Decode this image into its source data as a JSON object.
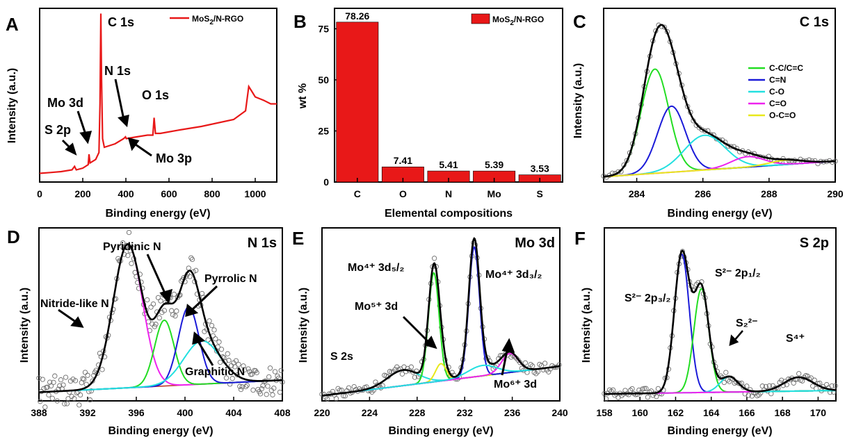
{
  "palette": {
    "red": "#e81818",
    "black": "#000000",
    "green": "#22dd22",
    "blue": "#1a1ad8",
    "cyan": "#22e0e0",
    "magenta": "#ee22ee",
    "yellow": "#e8e81a",
    "raw": "#6b6b6b"
  },
  "chart_data": [
    {
      "panel": "A",
      "type": "line",
      "xlabel": "Binding energy (eV)",
      "ylabel": "Intensity (a.u.)",
      "xlim": [
        0,
        1100
      ],
      "ylim": [
        0,
        100
      ],
      "xticks": [
        "0",
        "200",
        "400",
        "600",
        "800",
        "1000"
      ],
      "legend": "MoS2/N-RGO",
      "legend_position": "top-right",
      "series": [
        {
          "name": "MoS2/N-RGO",
          "color": "#e81818",
          "x": [
            0,
            50,
            100,
            150,
            162,
            170,
            200,
            225,
            229,
            234,
            260,
            275,
            280,
            284,
            287,
            292,
            300,
            350,
            390,
            398,
            402,
            450,
            500,
            525,
            531,
            537,
            560,
            650,
            750,
            900,
            955,
            970,
            985,
            1000,
            1040,
            1072,
            1100
          ],
          "y": [
            5,
            5.5,
            6,
            7,
            9,
            7,
            8,
            10,
            16,
            11,
            13,
            17,
            45,
            97,
            60,
            25,
            20,
            22,
            25,
            26,
            25,
            26,
            27,
            27,
            37,
            28,
            28,
            30,
            32,
            36,
            41,
            55,
            52,
            49,
            47,
            45,
            45
          ]
        }
      ],
      "annotations": [
        {
          "text": "C 1s",
          "x": 284,
          "y": 97
        },
        {
          "text": "N 1s",
          "x": 398,
          "y": 26
        },
        {
          "text": "O 1s",
          "x": 531,
          "y": 37
        },
        {
          "text": "Mo 3d",
          "x": 229,
          "y": 16
        },
        {
          "text": "S 2p",
          "x": 162,
          "y": 9
        },
        {
          "text": "Mo 3p",
          "x": 395,
          "y": 25
        }
      ]
    },
    {
      "panel": "B",
      "type": "bar",
      "xlabel": "Elemental compositions",
      "ylabel": "wt %",
      "ylim": [
        0,
        85
      ],
      "yticks": [
        0,
        25,
        50,
        75
      ],
      "legend": "MoS2/N-RGO",
      "legend_position": "top-right",
      "categories": [
        "C",
        "O",
        "N",
        "Mo",
        "S"
      ],
      "values": [
        78.26,
        7.41,
        5.41,
        5.39,
        3.53
      ],
      "value_labels": [
        "78.26",
        "7.41",
        "5.41",
        "5.39",
        "3.53"
      ],
      "color": "#e81818"
    },
    {
      "panel": "C",
      "type": "line",
      "title": "C 1s",
      "xlabel": "Binding energy (eV)",
      "ylabel": "Intensity (a.u.)",
      "xlim": [
        283,
        290
      ],
      "ylim": [
        0,
        100
      ],
      "xticks": [
        "284",
        "286",
        "288",
        "290"
      ],
      "legend_position": "top-right",
      "baseline": {
        "type": "linear",
        "x0": 283,
        "y0": 3,
        "x1": 290,
        "y1": 12
      },
      "peaks": [
        {
          "name": "C-C/C=C",
          "color": "#22dd22",
          "center": 284.55,
          "height": 60,
          "width": 0.42
        },
        {
          "name": "C=N",
          "color": "#1a1ad8",
          "center": 285.05,
          "height": 38,
          "width": 0.42
        },
        {
          "name": "C-O",
          "color": "#22e0e0",
          "center": 286.05,
          "height": 20,
          "width": 0.62
        },
        {
          "name": "C=O",
          "color": "#ee22ee",
          "center": 287.35,
          "height": 6,
          "width": 0.5
        },
        {
          "name": "O-C=O",
          "color": "#e8e81a",
          "center": 288.5,
          "height": 2.5,
          "width": 0.5
        }
      ]
    },
    {
      "panel": "D",
      "type": "line",
      "title": "N 1s",
      "xlabel": "Binding energy (eV)",
      "ylabel": "Intensity (a.u.)",
      "xlim": [
        388,
        408
      ],
      "ylim": [
        0,
        100
      ],
      "xticks": [
        "388",
        "392",
        "396",
        "400",
        "404",
        "408"
      ],
      "baseline": {
        "type": "linear",
        "x0": 388,
        "y0": 5,
        "x1": 408,
        "y1": 12
      },
      "peaks": [
        {
          "name": "Nitride-like N",
          "color": "#ee22ee",
          "center": 395.3,
          "height": 83,
          "width": 1.2
        },
        {
          "name": "Pyridinic N",
          "color": "#22dd22",
          "center": 398.3,
          "height": 38,
          "width": 0.8
        },
        {
          "name": "Pyrrolic N",
          "color": "#1a1ad8",
          "center": 400.3,
          "height": 45,
          "width": 0.85
        },
        {
          "name": "Graphitic N",
          "color": "#22e0e0",
          "center": 401.4,
          "height": 25,
          "width": 1.5
        }
      ],
      "annotations": [
        {
          "text": "Pyridinic N",
          "x": 398.3
        },
        {
          "text": "Pyrrolic N",
          "x": 400.3
        },
        {
          "text": "Nitride-like N",
          "x": 393.3
        },
        {
          "text": "Graphitic N",
          "x": 401.4
        }
      ]
    },
    {
      "panel": "E",
      "type": "line",
      "title": "Mo 3d",
      "xlabel": "Binding energy (eV)",
      "ylabel": "Intensity (a.u.)",
      "xlim": [
        220,
        240
      ],
      "ylim": [
        0,
        100
      ],
      "xticks": [
        "220",
        "224",
        "228",
        "232",
        "236",
        "240"
      ],
      "baseline": {
        "type": "linear",
        "x0": 220,
        "y0": 3,
        "x1": 240,
        "y1": 20
      },
      "peaks": [
        {
          "name": "S 2s",
          "color": "#22e0e0",
          "center": 226.8,
          "height": 9,
          "width": 1.3
        },
        {
          "name": "Mo4+ 3d5/2",
          "color": "#22dd22",
          "center": 229.4,
          "height": 63,
          "width": 0.45
        },
        {
          "name": "Mo5+ 3d",
          "color": "#e8e81a",
          "center": 230.0,
          "height": 10,
          "width": 0.45
        },
        {
          "name": "Mo4+ 3d3/2",
          "color": "#1a1ad8",
          "center": 232.8,
          "height": 75,
          "width": 0.45
        },
        {
          "name": "Mo6+ 3d",
          "color": "#ee22ee",
          "center": 235.8,
          "height": 11,
          "width": 0.7
        },
        {
          "name": "shoulder",
          "color": "#22e0e0",
          "center": 233.5,
          "height": 6,
          "width": 1.2
        }
      ],
      "annotations": [
        {
          "text": "S 2s",
          "x": 226.8
        },
        {
          "text": "Mo⁴⁺ 3d₅/₂",
          "x": 229.4
        },
        {
          "text": "Mo⁵⁺ 3d",
          "x": 230.0
        },
        {
          "text": "Mo⁴⁺ 3d₃/₂",
          "x": 232.8
        },
        {
          "text": "Mo⁶⁺ 3d",
          "x": 235.8
        }
      ]
    },
    {
      "panel": "F",
      "type": "line",
      "title": "S 2p",
      "xlabel": "Binding energy (eV)",
      "ylabel": "Intensity (a.u.)",
      "xlim": [
        158,
        171
      ],
      "ylim": [
        0,
        100
      ],
      "xticks": [
        "158",
        "160",
        "162",
        "164",
        "166",
        "168",
        "170"
      ],
      "baseline": {
        "type": "linear",
        "x0": 158,
        "y0": 4,
        "x1": 171,
        "y1": 6
      },
      "peaks": [
        {
          "name": "S2- 2p3/2",
          "color": "#1a1ad8",
          "center": 162.35,
          "height": 80,
          "width": 0.42
        },
        {
          "name": "S2- 2p1/2",
          "color": "#22dd22",
          "center": 163.45,
          "height": 60,
          "width": 0.42
        },
        {
          "name": "S2 2-",
          "color": "#22e0e0",
          "center": 165.0,
          "height": 9,
          "width": 0.5
        },
        {
          "name": "S4+",
          "color": "#ee22ee",
          "center": 168.9,
          "height": 8,
          "width": 0.8
        }
      ],
      "annotations": [
        {
          "text": "S²⁻ 2p₃/₂",
          "x": 162.35
        },
        {
          "text": "S²⁻ 2p₁/₂",
          "x": 163.45
        },
        {
          "text": "S₂²⁻",
          "x": 165.0
        },
        {
          "text": "S⁴⁺",
          "x": 168.9
        }
      ]
    }
  ]
}
